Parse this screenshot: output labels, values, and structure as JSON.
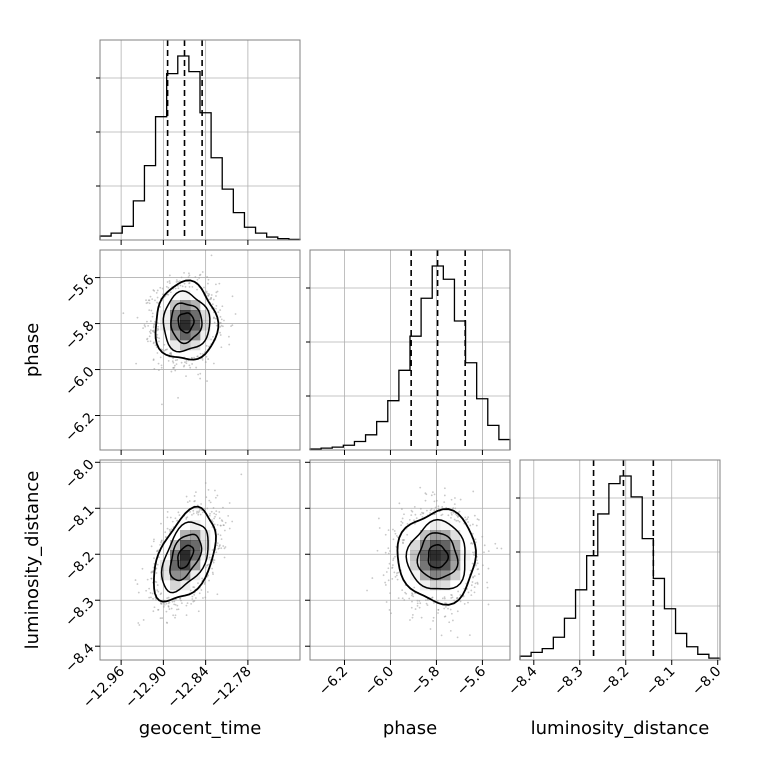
{
  "chart_data": {
    "type": "corner",
    "parameters": [
      {
        "name": "geocent_time",
        "label": "geocent_time",
        "range": [
          -12.99,
          -12.706
        ],
        "ticks": [
          -12.96,
          -12.9,
          -12.84,
          -12.78
        ],
        "tick_labels": [
          "−12.96",
          "−12.90",
          "−12.84",
          "−12.78"
        ],
        "quantiles": [
          -12.894,
          -12.87,
          -12.845
        ],
        "histogram": [
          0.02,
          0.035,
          0.07,
          0.2,
          0.38,
          0.63,
          0.85,
          0.94,
          0.86,
          0.65,
          0.42,
          0.26,
          0.14,
          0.065,
          0.035,
          0.015,
          0.007,
          0.003
        ]
      },
      {
        "name": "phase",
        "label": "phase",
        "range": [
          -6.35,
          -5.48
        ],
        "ticks": [
          -6.2,
          -6.0,
          -5.8,
          -5.6
        ],
        "tick_labels": [
          "−6.2",
          "−6.0",
          "−5.8",
          "−5.6"
        ],
        "quantiles": [
          -5.91,
          -5.795,
          -5.675
        ],
        "histogram": [
          0.005,
          0.01,
          0.015,
          0.025,
          0.045,
          0.08,
          0.15,
          0.26,
          0.42,
          0.6,
          0.8,
          0.97,
          0.9,
          0.68,
          0.46,
          0.27,
          0.13,
          0.055
        ]
      },
      {
        "name": "luminosity_distance",
        "label": "luminosity_distance",
        "range": [
          -8.43,
          -7.995
        ],
        "ticks": [
          -8.4,
          -8.3,
          -8.2,
          -8.1,
          -8.0
        ],
        "tick_labels": [
          "−8.4",
          "−8.3",
          "−8.2",
          "−8.1",
          "−8.0"
        ],
        "quantiles": [
          -8.27,
          -8.205,
          -8.14
        ],
        "histogram": [
          0.02,
          0.04,
          0.06,
          0.12,
          0.22,
          0.37,
          0.55,
          0.77,
          0.93,
          0.97,
          0.86,
          0.64,
          0.43,
          0.27,
          0.14,
          0.07,
          0.03,
          0.01
        ]
      }
    ],
    "joint": [
      {
        "x": "geocent_time",
        "y": "phase",
        "mean": [
          -12.868,
          -5.795
        ],
        "sd": [
          0.022,
          0.085
        ],
        "corr": 0.0
      },
      {
        "x": "geocent_time",
        "y": "luminosity_distance",
        "mean": [
          -12.869,
          -8.205
        ],
        "sd": [
          0.022,
          0.05
        ],
        "corr": 0.45
      },
      {
        "x": "phase",
        "y": "luminosity_distance",
        "mean": [
          -5.795,
          -8.205
        ],
        "sd": [
          0.085,
          0.05
        ],
        "corr": 0.0
      }
    ],
    "contour_levels_sigma": [
      0.5,
      1.0,
      1.5,
      2.0
    ],
    "grid": true,
    "colors": {
      "line": "#000000",
      "grid": "#b0b0b0",
      "points": "#9a9a9a",
      "density": "#000000"
    }
  }
}
